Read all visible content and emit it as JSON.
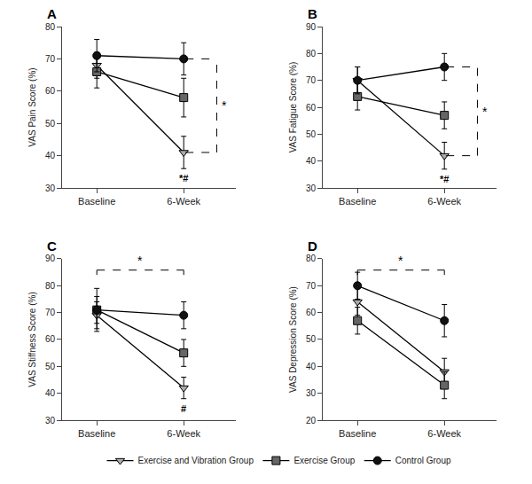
{
  "chart_data": [
    {
      "type": "line",
      "title": "A",
      "ylabel": "VAS Pain Score (%)",
      "categories": [
        "Baseline",
        "6-Week"
      ],
      "ylim": [
        30,
        80
      ],
      "yticks": [
        30,
        40,
        50,
        60,
        70,
        80
      ],
      "grid": false,
      "series": [
        {
          "name": "Exercise and Vibration Group",
          "color": "#aaaaaa",
          "marker": "triangle-down",
          "values": [
            68,
            41
          ],
          "errors": [
            4,
            5
          ]
        },
        {
          "name": "Exercise Group",
          "color": "#666666",
          "marker": "square",
          "values": [
            66,
            58
          ],
          "errors": [
            5,
            6
          ]
        },
        {
          "name": "Control Group",
          "color": "#111111",
          "marker": "circle",
          "values": [
            71,
            70
          ],
          "errors": [
            5,
            5
          ]
        }
      ],
      "annotations": [
        {
          "text": "*#",
          "series": "Exercise and Vibration Group",
          "category": "6-Week"
        },
        {
          "text": "*",
          "between": [
            "Control Group",
            "Exercise and Vibration Group"
          ],
          "category": "6-Week"
        }
      ]
    },
    {
      "type": "line",
      "title": "B",
      "ylabel": "VAS Fatigue Score (%)",
      "categories": [
        "Baseline",
        "6-Week"
      ],
      "ylim": [
        30,
        90
      ],
      "yticks": [
        30,
        40,
        50,
        60,
        70,
        80,
        90
      ],
      "grid": false,
      "series": [
        {
          "name": "Exercise and Vibration Group",
          "color": "#aaaaaa",
          "marker": "triangle-down",
          "values": [
            70,
            42
          ],
          "errors": [
            5,
            5
          ]
        },
        {
          "name": "Exercise Group",
          "color": "#666666",
          "marker": "square",
          "values": [
            64,
            57
          ],
          "errors": [
            5,
            5
          ]
        },
        {
          "name": "Control Group",
          "color": "#111111",
          "marker": "circle",
          "values": [
            70,
            75
          ],
          "errors": [
            5,
            5
          ]
        }
      ],
      "annotations": [
        {
          "text": "*#",
          "series": "Exercise and Vibration Group",
          "category": "6-Week"
        },
        {
          "text": "*",
          "between": [
            "Control Group",
            "Exercise and Vibration Group"
          ],
          "category": "6-Week"
        }
      ]
    },
    {
      "type": "line",
      "title": "C",
      "ylabel": "VAS Stiffness Score (%)",
      "categories": [
        "Baseline",
        "6-Week"
      ],
      "ylim": [
        30,
        90
      ],
      "yticks": [
        30,
        40,
        50,
        60,
        70,
        80,
        90
      ],
      "grid": false,
      "series": [
        {
          "name": "Exercise and Vibration Group",
          "color": "#aaaaaa",
          "marker": "triangle-down",
          "values": [
            69,
            42
          ],
          "errors": [
            5,
            4
          ]
        },
        {
          "name": "Exercise Group",
          "color": "#666666",
          "marker": "square",
          "values": [
            71,
            55
          ],
          "errors": [
            8,
            5
          ]
        },
        {
          "name": "Control Group",
          "color": "#111111",
          "marker": "circle",
          "values": [
            71,
            69
          ],
          "errors": [
            5,
            5
          ]
        }
      ],
      "annotations": [
        {
          "text": "#",
          "series": "Exercise and Vibration Group",
          "category": "6-Week"
        },
        {
          "text": "*",
          "between": [
            "Baseline",
            "6-Week"
          ]
        }
      ]
    },
    {
      "type": "line",
      "title": "D",
      "ylabel": "VAS Depression Score (%)",
      "categories": [
        "Baseline",
        "6-Week"
      ],
      "ylim": [
        20,
        80
      ],
      "yticks": [
        20,
        30,
        40,
        50,
        60,
        70,
        80
      ],
      "grid": false,
      "series": [
        {
          "name": "Exercise and Vibration Group",
          "color": "#aaaaaa",
          "marker": "triangle-down",
          "values": [
            64,
            38
          ],
          "errors": [
            5,
            5
          ]
        },
        {
          "name": "Exercise Group",
          "color": "#666666",
          "marker": "square",
          "values": [
            57,
            33
          ],
          "errors": [
            5,
            5
          ]
        },
        {
          "name": "Control Group",
          "color": "#111111",
          "marker": "circle",
          "values": [
            70,
            57
          ],
          "errors": [
            5,
            6
          ]
        }
      ],
      "annotations": [
        {
          "text": "*",
          "between": [
            "Baseline",
            "6-Week"
          ]
        }
      ]
    }
  ]
}
